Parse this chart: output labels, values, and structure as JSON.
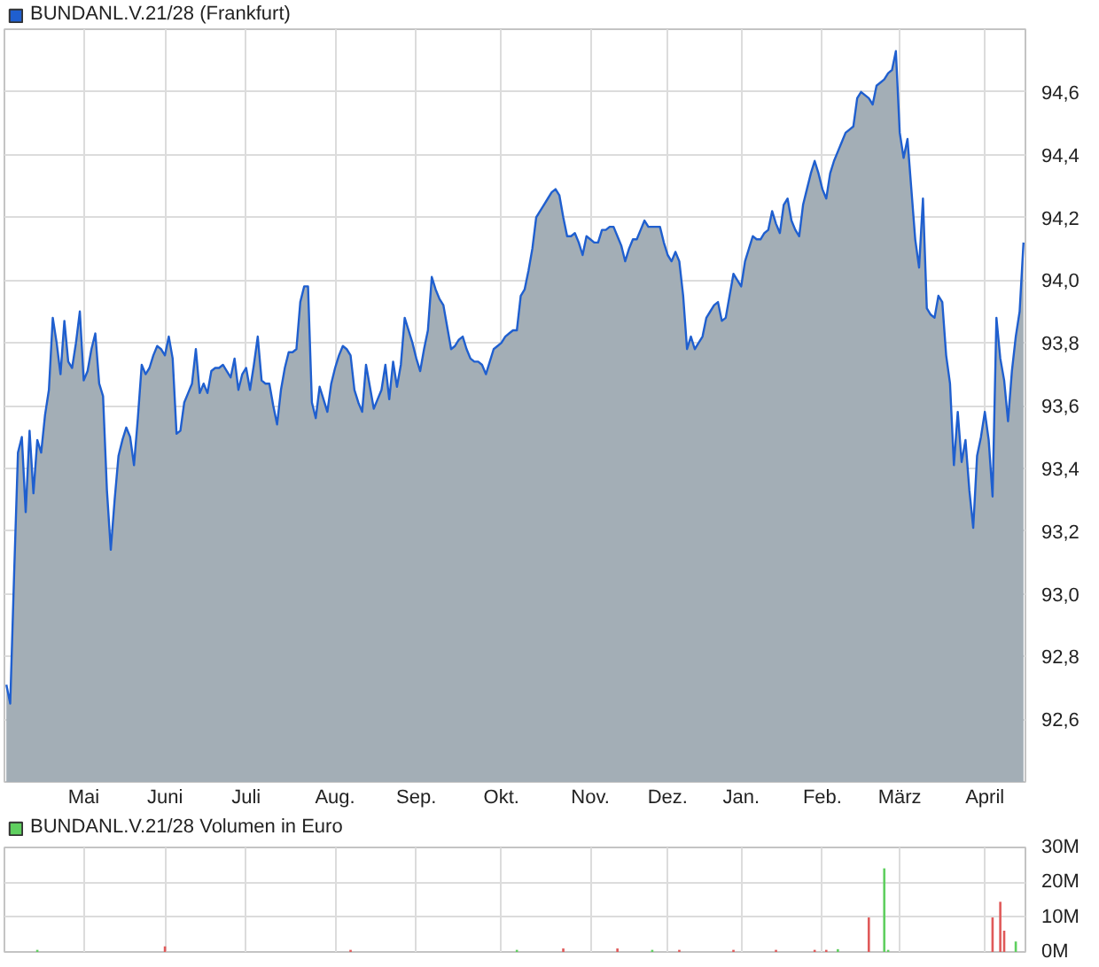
{
  "chart_data": [
    {
      "type": "area",
      "legend": "top left",
      "grid": true,
      "ylim": [
        92.4,
        94.8
      ],
      "yticks": [
        {
          "value": 92.6,
          "label": "92,6"
        },
        {
          "value": 92.8,
          "label": "92,8"
        },
        {
          "value": 93.0,
          "label": "93,0"
        },
        {
          "value": 93.2,
          "label": "93,2"
        },
        {
          "value": 93.4,
          "label": "93,4"
        },
        {
          "value": 93.6,
          "label": "93,6"
        },
        {
          "value": 93.8,
          "label": "93,8"
        },
        {
          "value": 94.0,
          "label": "94,0"
        },
        {
          "value": 94.2,
          "label": "94,2"
        },
        {
          "value": 94.4,
          "label": "94,4"
        },
        {
          "value": 94.6,
          "label": "94,6"
        }
      ],
      "categories": [
        null,
        null,
        null,
        null,
        null,
        null,
        null,
        null,
        null,
        null,
        null,
        null,
        null,
        null,
        null,
        null,
        null,
        null,
        null,
        null,
        "Mai",
        null,
        null,
        null,
        null,
        null,
        null,
        null,
        null,
        null,
        null,
        null,
        null,
        null,
        null,
        null,
        null,
        null,
        null,
        null,
        null,
        "Juni",
        null,
        null,
        null,
        null,
        null,
        null,
        null,
        null,
        null,
        null,
        null,
        null,
        null,
        null,
        null,
        null,
        null,
        null,
        null,
        null,
        "Juli",
        null,
        null,
        null,
        null,
        null,
        null,
        null,
        null,
        null,
        null,
        null,
        null,
        null,
        null,
        null,
        null,
        null,
        null,
        null,
        null,
        null,
        null,
        "Aug.",
        null,
        null,
        null,
        null,
        null,
        null,
        null,
        null,
        null,
        null,
        null,
        null,
        null,
        null,
        null,
        null,
        null,
        null,
        null,
        null,
        "Sep.",
        null,
        null,
        null,
        null,
        null,
        null,
        null,
        null,
        null,
        null,
        null,
        null,
        null,
        null,
        null,
        null,
        null,
        null,
        null,
        null,
        null,
        "Okt.",
        null,
        null,
        null,
        null,
        null,
        null,
        null,
        null,
        null,
        null,
        null,
        null,
        null,
        null,
        null,
        null,
        null,
        null,
        null,
        null,
        null,
        null,
        "Nov.",
        null,
        null,
        null,
        null,
        null,
        null,
        null,
        null,
        null,
        null,
        null,
        null,
        null,
        null,
        null,
        null,
        null,
        null,
        null,
        "Dez.",
        null,
        null,
        null,
        null,
        null,
        null,
        null,
        null,
        null,
        null,
        null,
        null,
        null,
        null,
        null,
        null,
        null,
        null,
        "Jan.",
        null,
        null,
        null,
        null,
        null,
        null,
        null,
        null,
        null,
        null,
        null,
        null,
        null,
        null,
        null,
        null,
        null,
        null,
        null,
        null,
        "Feb.",
        null,
        null,
        null,
        null,
        null,
        null,
        null,
        null,
        null,
        null,
        null,
        null,
        null,
        null,
        null,
        null,
        null,
        null,
        null,
        "März",
        null,
        null,
        null,
        null,
        null,
        null,
        null,
        null,
        null,
        null,
        null,
        null,
        null,
        null,
        null,
        null,
        null,
        null,
        null,
        null,
        null,
        "April",
        null,
        null,
        null,
        null,
        null,
        null,
        null,
        null,
        null,
        null
      ],
      "series": [
        {
          "name": "BUNDANL.V.21/28 (Frankfurt)",
          "color": "#1f5fcf",
          "values": [
            92.71,
            92.65,
            93.06,
            93.45,
            93.5,
            93.26,
            93.52,
            93.32,
            93.49,
            93.45,
            93.57,
            93.65,
            93.88,
            93.8,
            93.7,
            93.87,
            93.74,
            93.72,
            93.8,
            93.9,
            93.68,
            93.71,
            93.78,
            93.83,
            93.67,
            93.63,
            93.33,
            93.14,
            93.3,
            93.44,
            93.49,
            93.53,
            93.5,
            93.41,
            93.56,
            93.73,
            93.7,
            93.72,
            93.76,
            93.79,
            93.78,
            93.76,
            93.82,
            93.75,
            93.51,
            93.52,
            93.61,
            93.64,
            93.67,
            93.78,
            93.64,
            93.67,
            93.64,
            93.71,
            93.72,
            93.72,
            93.73,
            93.71,
            93.69,
            93.75,
            93.65,
            93.7,
            93.72,
            93.65,
            93.73,
            93.82,
            93.68,
            93.67,
            93.67,
            93.6,
            93.54,
            93.65,
            93.72,
            93.77,
            93.77,
            93.78,
            93.93,
            93.98,
            93.98,
            93.61,
            93.56,
            93.66,
            93.62,
            93.58,
            93.67,
            93.72,
            93.76,
            93.79,
            93.78,
            93.76,
            93.65,
            93.61,
            93.58,
            93.73,
            93.66,
            93.59,
            93.62,
            93.65,
            93.73,
            93.62,
            93.74,
            93.66,
            93.73,
            93.88,
            93.84,
            93.8,
            93.75,
            93.71,
            93.78,
            93.84,
            94.01,
            93.97,
            93.94,
            93.92,
            93.85,
            93.78,
            93.79,
            93.81,
            93.82,
            93.78,
            93.75,
            93.74,
            93.74,
            93.73,
            93.7,
            93.74,
            93.78,
            93.79,
            93.8,
            93.82,
            93.83,
            93.84,
            93.84,
            93.95,
            93.97,
            94.03,
            94.1,
            94.2,
            94.22,
            94.24,
            94.26,
            94.28,
            94.29,
            94.27,
            94.2,
            94.14,
            94.14,
            94.15,
            94.12,
            94.08,
            94.14,
            94.13,
            94.12,
            94.12,
            94.16,
            94.16,
            94.17,
            94.17,
            94.14,
            94.11,
            94.06,
            94.1,
            94.13,
            94.13,
            94.16,
            94.19,
            94.17,
            94.17,
            94.17,
            94.17,
            94.12,
            94.08,
            94.06,
            94.09,
            94.06,
            93.95,
            93.78,
            93.82,
            93.78,
            93.8,
            93.82,
            93.88,
            93.9,
            93.92,
            93.93,
            93.87,
            93.88,
            93.95,
            94.02,
            94.0,
            93.98,
            94.06,
            94.1,
            94.14,
            94.13,
            94.13,
            94.15,
            94.16,
            94.22,
            94.18,
            94.15,
            94.24,
            94.26,
            94.19,
            94.16,
            94.14,
            94.24,
            94.29,
            94.34,
            94.38,
            94.34,
            94.29,
            94.26,
            94.34,
            94.38,
            94.41,
            94.44,
            94.47,
            94.48,
            94.49,
            94.58,
            94.6,
            94.59,
            94.58,
            94.56,
            94.62,
            94.63,
            94.64,
            94.66,
            94.67,
            94.73,
            94.47,
            94.39,
            94.45,
            94.29,
            94.13,
            94.04,
            94.26,
            93.91,
            93.89,
            93.88,
            93.95,
            93.93,
            93.76,
            93.67,
            93.41,
            93.58,
            93.42,
            93.49,
            93.33,
            93.21,
            93.44,
            93.5,
            93.58,
            93.49,
            93.31,
            93.88,
            93.75,
            93.68,
            93.55,
            93.71,
            93.82,
            93.9,
            94.12
          ]
        }
      ]
    },
    {
      "type": "bar",
      "legend": "top left",
      "grid": true,
      "tick_labels": "y",
      "ylim": [
        0,
        30
      ],
      "yticks": [
        {
          "value": 0,
          "label": "0M"
        },
        {
          "value": 10,
          "label": "10M"
        },
        {
          "value": 20,
          "label": "20M"
        },
        {
          "value": 30,
          "label": "30M"
        }
      ],
      "categories": [
        null,
        null,
        null,
        null,
        null,
        null,
        null,
        null,
        null,
        null,
        null,
        null,
        null,
        null,
        null,
        null,
        null,
        null,
        null,
        null,
        null,
        null,
        null,
        null,
        null,
        null,
        null,
        null,
        null,
        null,
        null,
        null,
        null,
        null,
        null,
        null,
        null,
        null,
        null,
        null,
        null,
        null,
        null,
        null,
        null,
        null,
        null,
        null,
        null,
        null,
        null,
        null,
        null,
        null,
        null,
        null,
        null,
        null,
        null,
        null,
        null,
        null,
        null,
        null,
        null,
        null,
        null,
        null,
        null,
        null,
        null,
        null,
        null,
        null,
        null,
        null,
        null,
        null,
        null,
        null,
        null,
        null,
        null,
        null,
        null,
        null,
        null,
        null,
        null,
        null,
        null,
        null,
        null,
        null,
        null,
        null,
        null,
        null,
        null,
        null,
        null,
        null,
        null,
        null,
        null,
        null,
        null,
        null,
        null,
        null,
        null,
        null,
        null,
        null,
        null,
        null,
        null,
        null,
        null,
        null,
        null,
        null,
        null,
        null,
        null,
        null,
        null,
        null,
        null,
        null,
        null,
        null,
        null,
        null,
        null,
        null,
        null,
        null,
        null,
        null,
        null,
        null,
        null,
        null,
        null,
        null,
        null,
        null,
        null,
        null,
        null,
        null,
        null,
        null,
        null,
        null,
        null,
        null,
        null,
        null,
        null,
        null,
        null,
        null,
        null,
        null,
        null,
        null,
        null,
        null,
        null,
        null,
        null,
        null,
        null,
        null,
        null,
        null,
        null,
        null,
        null,
        null,
        null,
        null,
        null,
        null,
        null,
        null,
        null,
        null,
        null,
        null,
        null,
        null,
        null,
        null,
        null,
        null,
        null,
        null,
        null,
        null,
        null,
        null,
        null,
        null,
        null,
        null,
        null,
        null,
        null,
        null,
        null,
        null,
        null,
        null,
        null,
        null,
        null,
        null,
        null,
        null,
        null,
        null,
        null,
        null,
        null,
        null,
        null,
        null,
        null,
        null,
        null,
        null,
        null,
        null,
        null,
        null,
        null,
        null,
        null,
        null,
        null,
        null,
        null,
        null,
        null,
        null,
        null,
        null,
        null,
        null,
        null,
        null,
        null,
        null,
        null,
        null,
        null,
        null,
        null,
        null,
        null,
        null
      ],
      "series": [
        {
          "name": "BUNDANL.V.21/28 Volumen in Euro",
          "color": "#5fcf5f",
          "values": [
            null,
            null,
            null,
            null,
            null,
            null,
            null,
            null,
            0.6,
            null,
            null,
            null,
            null,
            null,
            null,
            null,
            null,
            null,
            null,
            null,
            null,
            null,
            null,
            null,
            null,
            null,
            null,
            null,
            null,
            null,
            null,
            null,
            null,
            null,
            null,
            null,
            null,
            null,
            null,
            null,
            null,
            1.6,
            null,
            null,
            null,
            null,
            null,
            null,
            null,
            null,
            null,
            null,
            null,
            null,
            null,
            null,
            null,
            null,
            null,
            null,
            null,
            null,
            null,
            null,
            null,
            null,
            null,
            null,
            null,
            null,
            null,
            null,
            null,
            null,
            null,
            null,
            null,
            null,
            null,
            null,
            null,
            null,
            null,
            null,
            null,
            null,
            null,
            null,
            null,
            0.6,
            null,
            null,
            null,
            null,
            null,
            null,
            null,
            null,
            null,
            null,
            null,
            null,
            null,
            null,
            null,
            null,
            null,
            null,
            null,
            null,
            null,
            null,
            null,
            null,
            null,
            null,
            null,
            null,
            null,
            null,
            null,
            null,
            null,
            null,
            null,
            null,
            null,
            null,
            null,
            null,
            null,
            null,
            0.6,
            null,
            null,
            null,
            null,
            null,
            null,
            null,
            null,
            null,
            null,
            null,
            1.0,
            null,
            null,
            null,
            null,
            null,
            null,
            null,
            null,
            null,
            null,
            null,
            null,
            null,
            1.0,
            null,
            null,
            null,
            null,
            null,
            null,
            null,
            null,
            0.6,
            null,
            null,
            null,
            null,
            null,
            null,
            0.6,
            null,
            null,
            null,
            null,
            null,
            null,
            null,
            null,
            null,
            null,
            null,
            null,
            null,
            0.6,
            null,
            null,
            null,
            null,
            null,
            null,
            null,
            null,
            null,
            null,
            0.6,
            null,
            null,
            null,
            null,
            null,
            null,
            null,
            null,
            null,
            0.6,
            null,
            null,
            0.6,
            null,
            null,
            0.8,
            null,
            null,
            null,
            null,
            null,
            null,
            null,
            9.9,
            null,
            null,
            null,
            24,
            0.6,
            null,
            null,
            null,
            null,
            null,
            null,
            null,
            null,
            null,
            null,
            null,
            null,
            null,
            null,
            null,
            null,
            null,
            null,
            null,
            null,
            null,
            null,
            null,
            null,
            null,
            null,
            9.9,
            null,
            14.4,
            6.1,
            null,
            null,
            3.0,
            null,
            null
          ],
          "colors": [
            null,
            null,
            null,
            null,
            null,
            null,
            null,
            null,
            "#5fcf5f",
            null,
            null,
            null,
            null,
            null,
            null,
            null,
            null,
            null,
            null,
            null,
            null,
            null,
            null,
            null,
            null,
            null,
            null,
            null,
            null,
            null,
            null,
            null,
            null,
            null,
            null,
            null,
            null,
            null,
            null,
            null,
            null,
            "#e05a5a",
            null,
            null,
            null,
            null,
            null,
            null,
            null,
            null,
            null,
            null,
            null,
            null,
            null,
            null,
            null,
            null,
            null,
            null,
            null,
            null,
            null,
            null,
            null,
            null,
            null,
            null,
            null,
            null,
            null,
            null,
            null,
            null,
            null,
            null,
            null,
            null,
            null,
            null,
            null,
            null,
            null,
            null,
            null,
            null,
            null,
            null,
            null,
            "#e05a5a",
            null,
            null,
            null,
            null,
            null,
            null,
            null,
            null,
            null,
            null,
            null,
            null,
            null,
            null,
            null,
            null,
            null,
            null,
            null,
            null,
            null,
            null,
            null,
            null,
            null,
            null,
            null,
            null,
            null,
            null,
            null,
            null,
            null,
            null,
            null,
            null,
            null,
            null,
            null,
            null,
            null,
            null,
            "#5fcf5f",
            null,
            null,
            null,
            null,
            null,
            null,
            null,
            null,
            null,
            null,
            null,
            "#e05a5a",
            null,
            null,
            null,
            null,
            null,
            null,
            null,
            null,
            null,
            null,
            null,
            null,
            null,
            "#e05a5a",
            null,
            null,
            null,
            null,
            null,
            null,
            null,
            null,
            "#5fcf5f",
            null,
            null,
            null,
            null,
            null,
            null,
            "#e05a5a",
            null,
            null,
            null,
            null,
            null,
            null,
            null,
            null,
            null,
            null,
            null,
            null,
            null,
            "#e05a5a",
            null,
            null,
            null,
            null,
            null,
            null,
            null,
            null,
            null,
            null,
            "#e05a5a",
            null,
            null,
            null,
            null,
            null,
            null,
            null,
            null,
            null,
            "#e05a5a",
            null,
            null,
            "#e05a5a",
            null,
            null,
            "#5fcf5f",
            null,
            null,
            null,
            null,
            null,
            null,
            null,
            "#e05a5a",
            null,
            null,
            null,
            "#5fcf5f",
            "#5fcf5f",
            null,
            null,
            null,
            null,
            null,
            null,
            null,
            null,
            null,
            null,
            null,
            null,
            null,
            null,
            null,
            null,
            null,
            null,
            null,
            null,
            null,
            null,
            null,
            null,
            null,
            null,
            "#e05a5a",
            null,
            "#e05a5a",
            "#e05a5a",
            null,
            null,
            "#5fcf5f",
            null,
            null
          ]
        }
      ]
    }
  ]
}
